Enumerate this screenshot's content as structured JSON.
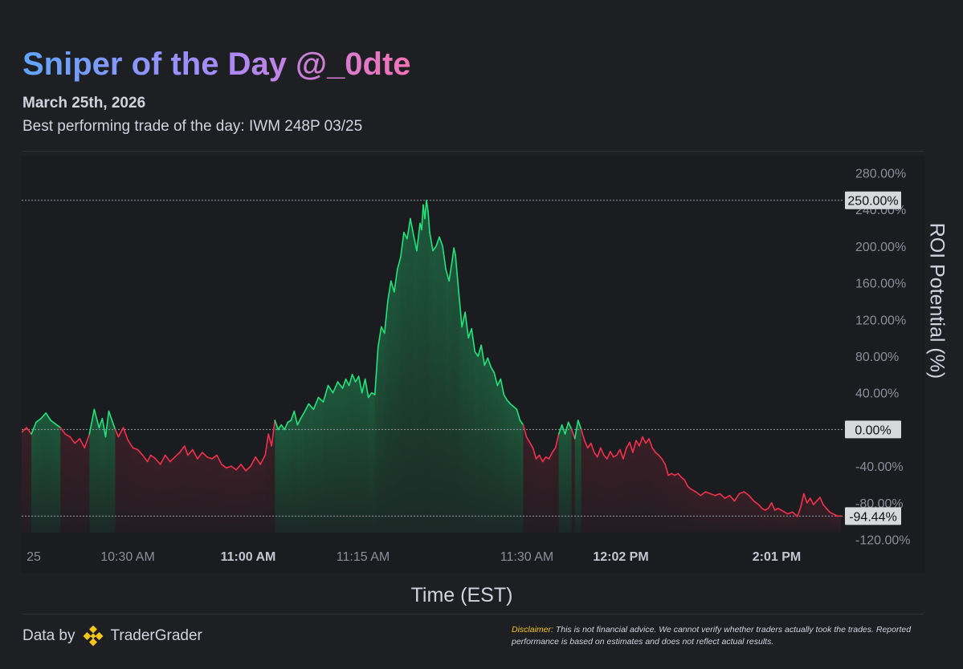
{
  "header": {
    "title": "Sniper of the Day @_0dte",
    "date": "March 25th, 2026",
    "subtitle": "Best performing trade of the day: IWM 248P 03/25"
  },
  "footer": {
    "data_by": "Data by",
    "brand": "TraderGrader",
    "disclaimer_label": "Disclaimer:",
    "disclaimer_text": "This is not financial advice. We cannot verify whether traders actually took the trades. Reported performance is based on estimates and does not reflect actual results."
  },
  "colors": {
    "background": "#1e1f23",
    "panel": "#1b1c20",
    "up": "#22e47a",
    "down": "#f2304c",
    "grid": "#2b2d32",
    "tick_text": "#8c8f97",
    "price_tag_bg": "#d7d9dd",
    "logo": "#f5c518"
  },
  "chart_data": {
    "type": "area",
    "title": "Sniper of the Day @_0dte",
    "xlabel": "Time (EST)",
    "ylabel": "ROI Potential (%)",
    "ylim": [
      -130,
      290
    ],
    "y_ticks": [
      "280.00%",
      "240.00%",
      "200.00%",
      "160.00%",
      "120.00%",
      "80.00%",
      "40.00%",
      "-40.00%",
      "-80.00%",
      "-120.00%"
    ],
    "y_tick_values": [
      280,
      240,
      200,
      160,
      120,
      80,
      40,
      -40,
      -80,
      -120
    ],
    "x_ticks": [
      {
        "label": "25",
        "bold": false
      },
      {
        "label": "10:30 AM",
        "bold": false
      },
      {
        "label": "11:00 AM",
        "bold": true
      },
      {
        "label": "11:15 AM",
        "bold": false
      },
      {
        "label": "11:30 AM",
        "bold": false
      },
      {
        "label": "12:02 PM",
        "bold": true
      },
      {
        "label": "2:01 PM",
        "bold": true
      }
    ],
    "reference_lines": [
      {
        "label": "250.00%",
        "value": 250
      },
      {
        "label": "0.00%",
        "value": 0
      },
      {
        "label": "-94.44%",
        "value": -94.44
      }
    ],
    "series_points": [
      [
        0,
        -3
      ],
      [
        6,
        2
      ],
      [
        12,
        -5
      ],
      [
        18,
        8
      ],
      [
        24,
        12
      ],
      [
        30,
        18
      ],
      [
        36,
        10
      ],
      [
        42,
        6
      ],
      [
        48,
        2
      ],
      [
        54,
        -5
      ],
      [
        60,
        -8
      ],
      [
        66,
        -15
      ],
      [
        72,
        -10
      ],
      [
        78,
        -20
      ],
      [
        84,
        -5
      ],
      [
        90,
        22
      ],
      [
        96,
        2
      ],
      [
        100,
        12
      ],
      [
        104,
        -8
      ],
      [
        108,
        20
      ],
      [
        112,
        10
      ],
      [
        116,
        0
      ],
      [
        120,
        -8
      ],
      [
        126,
        2
      ],
      [
        132,
        -12
      ],
      [
        138,
        -20
      ],
      [
        144,
        -22
      ],
      [
        150,
        -28
      ],
      [
        156,
        -35
      ],
      [
        160,
        -28
      ],
      [
        166,
        -32
      ],
      [
        172,
        -38
      ],
      [
        178,
        -28
      ],
      [
        184,
        -35
      ],
      [
        190,
        -30
      ],
      [
        196,
        -25
      ],
      [
        202,
        -18
      ],
      [
        206,
        -28
      ],
      [
        212,
        -22
      ],
      [
        218,
        -32
      ],
      [
        224,
        -25
      ],
      [
        230,
        -30
      ],
      [
        236,
        -32
      ],
      [
        242,
        -28
      ],
      [
        248,
        -38
      ],
      [
        254,
        -42
      ],
      [
        260,
        -40
      ],
      [
        266,
        -44
      ],
      [
        272,
        -38
      ],
      [
        278,
        -45
      ],
      [
        284,
        -40
      ],
      [
        290,
        -30
      ],
      [
        296,
        -38
      ],
      [
        302,
        -28
      ],
      [
        306,
        -5
      ],
      [
        310,
        -18
      ],
      [
        314,
        10
      ],
      [
        318,
        0
      ],
      [
        322,
        5
      ],
      [
        326,
        0
      ],
      [
        330,
        8
      ],
      [
        334,
        10
      ],
      [
        338,
        20
      ],
      [
        342,
        5
      ],
      [
        346,
        12
      ],
      [
        350,
        18
      ],
      [
        356,
        28
      ],
      [
        362,
        22
      ],
      [
        368,
        35
      ],
      [
        374,
        30
      ],
      [
        380,
        48
      ],
      [
        386,
        40
      ],
      [
        392,
        52
      ],
      [
        398,
        45
      ],
      [
        402,
        55
      ],
      [
        406,
        48
      ],
      [
        410,
        60
      ],
      [
        414,
        52
      ],
      [
        418,
        58
      ],
      [
        422,
        40
      ],
      [
        426,
        55
      ],
      [
        430,
        35
      ],
      [
        434,
        40
      ],
      [
        438,
        38
      ],
      [
        442,
        90
      ],
      [
        446,
        112
      ],
      [
        450,
        105
      ],
      [
        454,
        140
      ],
      [
        458,
        162
      ],
      [
        462,
        150
      ],
      [
        466,
        175
      ],
      [
        470,
        188
      ],
      [
        474,
        215
      ],
      [
        478,
        208
      ],
      [
        482,
        230
      ],
      [
        486,
        212
      ],
      [
        490,
        195
      ],
      [
        494,
        225
      ],
      [
        496,
        218
      ],
      [
        498,
        245
      ],
      [
        500,
        230
      ],
      [
        502,
        250
      ],
      [
        504,
        238
      ],
      [
        506,
        215
      ],
      [
        510,
        195
      ],
      [
        514,
        200
      ],
      [
        518,
        210
      ],
      [
        522,
        200
      ],
      [
        526,
        175
      ],
      [
        530,
        162
      ],
      [
        534,
        185
      ],
      [
        536,
        198
      ],
      [
        538,
        190
      ],
      [
        542,
        150
      ],
      [
        546,
        112
      ],
      [
        550,
        128
      ],
      [
        554,
        100
      ],
      [
        558,
        110
      ],
      [
        562,
        85
      ],
      [
        566,
        80
      ],
      [
        570,
        92
      ],
      [
        574,
        70
      ],
      [
        578,
        78
      ],
      [
        582,
        68
      ],
      [
        586,
        62
      ],
      [
        590,
        48
      ],
      [
        594,
        55
      ],
      [
        598,
        38
      ],
      [
        602,
        32
      ],
      [
        606,
        28
      ],
      [
        610,
        25
      ],
      [
        614,
        22
      ],
      [
        618,
        10
      ],
      [
        622,
        5
      ],
      [
        626,
        -8
      ],
      [
        630,
        -14
      ],
      [
        634,
        -20
      ],
      [
        638,
        -32
      ],
      [
        642,
        -28
      ],
      [
        646,
        -35
      ],
      [
        650,
        -30
      ],
      [
        654,
        -32
      ],
      [
        658,
        -25
      ],
      [
        662,
        -20
      ],
      [
        666,
        -5
      ],
      [
        670,
        5
      ],
      [
        674,
        -5
      ],
      [
        678,
        8
      ],
      [
        682,
        0
      ],
      [
        686,
        -10
      ],
      [
        690,
        10
      ],
      [
        694,
        0
      ],
      [
        698,
        -12
      ],
      [
        702,
        -20
      ],
      [
        706,
        -15
      ],
      [
        710,
        -25
      ],
      [
        714,
        -30
      ],
      [
        718,
        -20
      ],
      [
        722,
        -28
      ],
      [
        726,
        -32
      ],
      [
        730,
        -24
      ],
      [
        734,
        -30
      ],
      [
        738,
        -28
      ],
      [
        742,
        -22
      ],
      [
        746,
        -32
      ],
      [
        750,
        -20
      ],
      [
        754,
        -14
      ],
      [
        758,
        -25
      ],
      [
        762,
        -12
      ],
      [
        766,
        -18
      ],
      [
        770,
        -8
      ],
      [
        774,
        -15
      ],
      [
        778,
        -10
      ],
      [
        782,
        -20
      ],
      [
        786,
        -25
      ],
      [
        790,
        -28
      ],
      [
        794,
        -32
      ],
      [
        798,
        -38
      ],
      [
        802,
        -50
      ],
      [
        806,
        -48
      ],
      [
        810,
        -50
      ],
      [
        814,
        -48
      ],
      [
        818,
        -52
      ],
      [
        822,
        -55
      ],
      [
        826,
        -62
      ],
      [
        830,
        -65
      ],
      [
        836,
        -68
      ],
      [
        842,
        -72
      ],
      [
        848,
        -68
      ],
      [
        854,
        -70
      ],
      [
        860,
        -72
      ],
      [
        866,
        -70
      ],
      [
        872,
        -75
      ],
      [
        878,
        -72
      ],
      [
        884,
        -78
      ],
      [
        890,
        -70
      ],
      [
        896,
        -68
      ],
      [
        902,
        -72
      ],
      [
        908,
        -78
      ],
      [
        914,
        -82
      ],
      [
        918,
        -86
      ],
      [
        922,
        -88
      ],
      [
        926,
        -86
      ],
      [
        930,
        -80
      ],
      [
        934,
        -88
      ],
      [
        938,
        -86
      ],
      [
        942,
        -88
      ],
      [
        946,
        -90
      ],
      [
        950,
        -92
      ],
      [
        956,
        -90
      ],
      [
        962,
        -95
      ],
      [
        966,
        -85
      ],
      [
        970,
        -70
      ],
      [
        974,
        -80
      ],
      [
        978,
        -75
      ],
      [
        982,
        -82
      ],
      [
        986,
        -78
      ],
      [
        990,
        -74
      ],
      [
        994,
        -82
      ],
      [
        998,
        -86
      ],
      [
        1002,
        -90
      ],
      [
        1006,
        -92
      ],
      [
        1012,
        -94.44
      ],
      [
        1016,
        -94.44
      ]
    ],
    "series_x_domain": [
      0,
      1016
    ],
    "grid": false,
    "legend": "none"
  }
}
